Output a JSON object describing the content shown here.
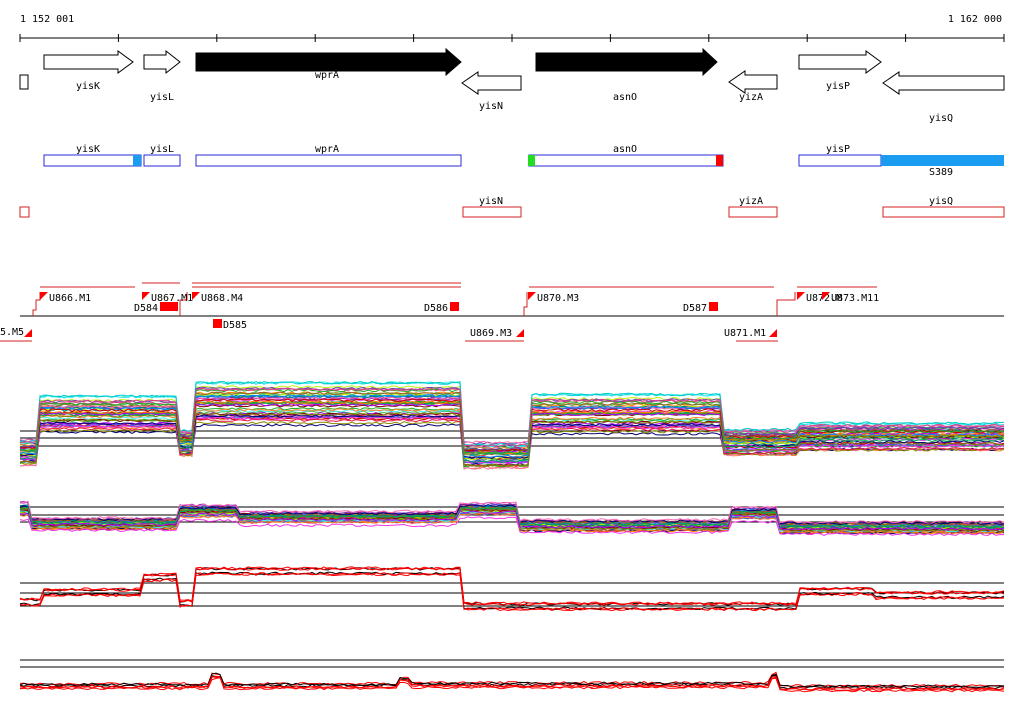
{
  "coords": {
    "start": "1 152 001",
    "end": "1 162 000"
  },
  "genes": [
    {
      "name": "yisK",
      "strand": "+",
      "style": "open"
    },
    {
      "name": "yisL",
      "strand": "+",
      "style": "open"
    },
    {
      "name": "wprA",
      "strand": "+",
      "style": "filled"
    },
    {
      "name": "yisN",
      "strand": "-",
      "style": "open"
    },
    {
      "name": "asnO",
      "strand": "+",
      "style": "filled"
    },
    {
      "name": "yizA",
      "strand": "-",
      "style": "open"
    },
    {
      "name": "yisP",
      "strand": "+",
      "style": "open"
    },
    {
      "name": "yisQ",
      "strand": "-",
      "style": "open"
    }
  ],
  "forward_track": [
    {
      "name": "yisK"
    },
    {
      "name": "yisL"
    },
    {
      "name": "wprA"
    },
    {
      "name": "asnO"
    },
    {
      "name": "yisP"
    }
  ],
  "forward_track_extra_label": "S389",
  "reverse_track": [
    {
      "name": "yisN"
    },
    {
      "name": "yizA"
    },
    {
      "name": "yisQ"
    }
  ],
  "upstream_labels_top": [
    "U866.M1",
    "U867.M1",
    "U868.M4",
    "U870.M3",
    "U872.M",
    "U873.M11"
  ],
  "upstream_labels_bottom": [
    "5.M5",
    "U869.M3",
    "U871.M1"
  ],
  "downstream_labels": [
    "D584",
    "D586",
    "D587",
    "D585"
  ],
  "colors": {
    "gene_outline": "#000000",
    "forward_box": "#2a2ad4",
    "reverse_box": "#d42020",
    "accent_blue": "#1a9cf0",
    "accent_green": "#22dd22",
    "marker_red": "#ff0000",
    "track_line": "#000000"
  }
}
